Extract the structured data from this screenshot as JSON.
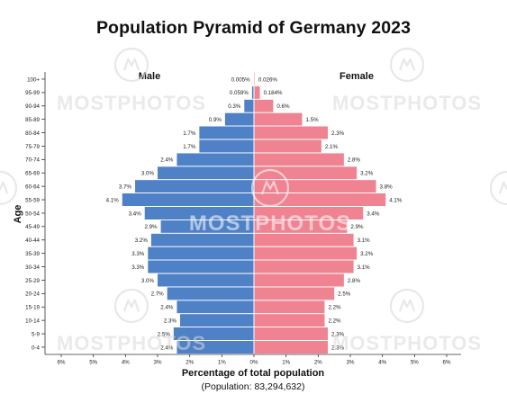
{
  "title": "Population Pyramid of Germany 2023",
  "watermark": "MOSTPHOTOS",
  "chart_data": {
    "type": "bar",
    "orientation": "horizontal-pyramid",
    "title": "Population Pyramid of Germany 2023",
    "ylabel": "Age",
    "xlabel": "Percentage of total population",
    "subtitle": "(Population: 83,294,632)",
    "xlim": [
      -6,
      6
    ],
    "x_ticks": [
      "6%",
      "5%",
      "4%",
      "3%",
      "2%",
      "1%",
      "0%",
      "1%",
      "2%",
      "3%",
      "4%",
      "5%",
      "6%"
    ],
    "categories": [
      "100+",
      "95-99",
      "90-94",
      "85-89",
      "80-84",
      "75-79",
      "70-74",
      "65-69",
      "60-64",
      "55-59",
      "50-54",
      "45-49",
      "40-44",
      "35-39",
      "30-34",
      "25-29",
      "20-24",
      "15-19",
      "10-14",
      "5-9",
      "0-4"
    ],
    "series": [
      {
        "name": "Male",
        "color": "#4f81c7",
        "values": [
          0.005,
          0.059,
          0.3,
          0.9,
          1.7,
          1.7,
          2.4,
          3.0,
          3.7,
          4.1,
          3.4,
          2.9,
          3.2,
          3.3,
          3.3,
          3.0,
          2.7,
          2.4,
          2.3,
          2.5,
          2.4
        ],
        "labels": [
          "0.005%",
          "0.059%",
          "0.3%",
          "0.9%",
          "1.7%",
          "1.7%",
          "2.4%",
          "3.0%",
          "3.7%",
          "4.1%",
          "3.4%",
          "2.9%",
          "3.2%",
          "3.3%",
          "3.3%",
          "3.0%",
          "2.7%",
          "2.4%",
          "2.3%",
          "2.5%",
          "2.4%"
        ]
      },
      {
        "name": "Female",
        "color": "#ef8391",
        "values": [
          0.026,
          0.184,
          0.6,
          1.5,
          2.3,
          2.1,
          2.8,
          3.2,
          3.8,
          4.1,
          3.4,
          2.9,
          3.1,
          3.2,
          3.1,
          2.8,
          2.5,
          2.2,
          2.2,
          2.3,
          2.3
        ],
        "labels": [
          "0.026%",
          "0.184%",
          "0.6%",
          "1.5%",
          "2.3%",
          "2.1%",
          "2.8%",
          "3.2%",
          "3.8%",
          "4.1%",
          "3.4%",
          "2.9%",
          "3.1%",
          "3.2%",
          "3.1%",
          "2.8%",
          "2.5%",
          "2.2%",
          "2.2%",
          "2.3%",
          "2.3%"
        ]
      }
    ],
    "grid": false,
    "legend": "inline-top"
  }
}
